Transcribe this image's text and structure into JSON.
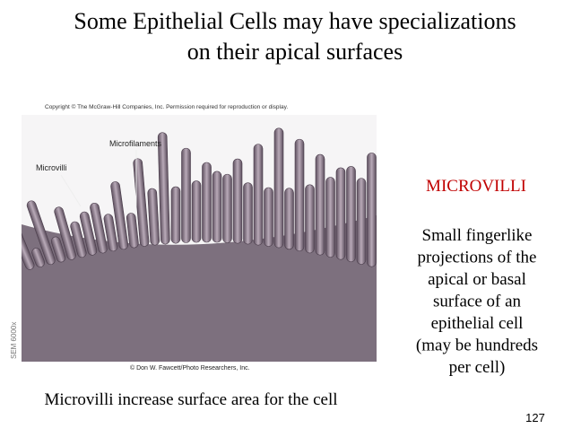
{
  "header": {
    "title_lines": [
      "Some Epithelial Cells may have specializations",
      "on their apical surfaces"
    ]
  },
  "figure": {
    "copyright": "Copyright © The McGraw-Hill Companies, Inc. Permission required for reproduction or display.",
    "labels": [
      "Microfilaments",
      "Microvilli"
    ],
    "magnification": "SEM 6000x",
    "credit": "© Don W. Fawcett/Photo Researchers, Inc."
  },
  "caption": "Microvilli increase surface area for the cell",
  "sidebar": {
    "heading": "MICROVILLI",
    "lines": [
      "Small fingerlike",
      "projections of the",
      "apical or basal",
      "surface of an",
      "epithelial cell",
      "(may be hundreds",
      "per cell)"
    ]
  },
  "page_number": "127"
}
